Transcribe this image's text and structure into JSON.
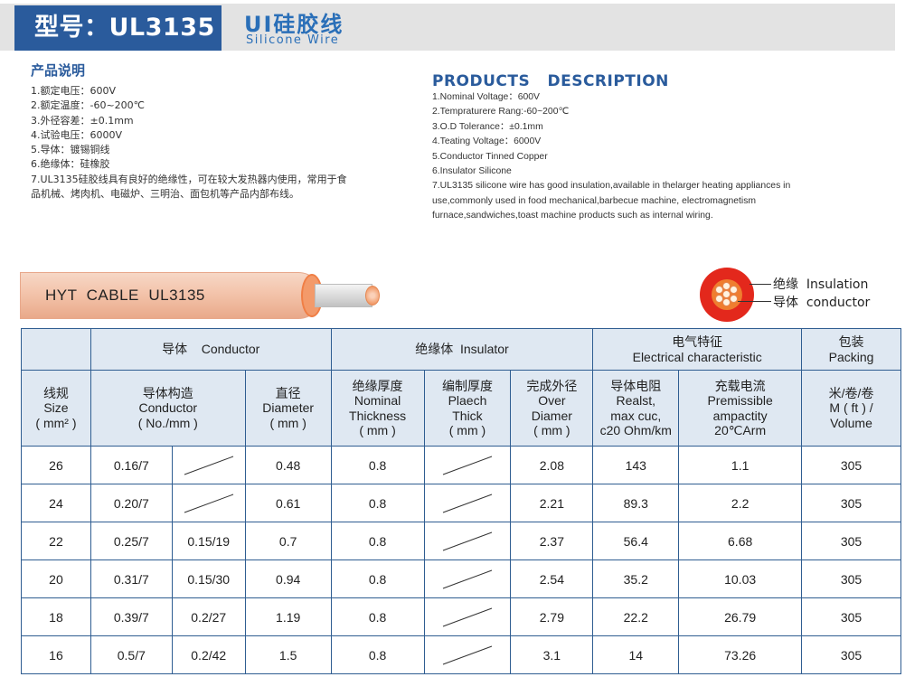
{
  "header": {
    "model_label": "型号：UL3135",
    "title_cn": "UI硅胶线",
    "title_en": "Silicone Wire"
  },
  "desc_cn": {
    "heading": "产品说明",
    "items": [
      "1.额定电压：600V",
      "2.额定温度：-60~200℃",
      "3.外径容差：±0.1mm",
      "4.试验电压：6000V",
      "5.导体：镀锡铜线",
      "6.绝缘体：硅橡胶",
      "7.UL3135硅胶线具有良好的绝缘性，可在较大发热器内使用，常用于食品机械、烤肉机、电磁炉、三明治、面包机等产品内部布线。"
    ]
  },
  "desc_en": {
    "heading": "PRODUCTS   DESCRIPTION",
    "items": [
      "1.Nominal Voltage：600V",
      "2.Tempraturere Rang:-60~200℃",
      "3.O.D Tolerance：±0.1mm",
      "4.Teating Voltage：6000V",
      "5.Conductor  Tinned Copper",
      "6.Insulator Silicone",
      "7.UL3135 silicone wire has good insulation,available in thelarger heating appliances in use,commonly used in food mechanical,barbecue machine, electromagnetism furnace,sandwiches,toast machine products such as internal wiring."
    ]
  },
  "cable": {
    "label": "HYT  CABLE  UL3135"
  },
  "cross_section": {
    "insulation_label": "绝缘  Insulation",
    "conductor_label": "导体  conductor",
    "colors": {
      "insulation": "#e3281c",
      "conductor": "#ef7e2f"
    }
  },
  "table": {
    "group_headers": {
      "conductor": "导体    Conductor",
      "insulator": "绝缘体  Insulator",
      "electrical_cn": "电气特征",
      "electrical_en": "Electrical characteristic",
      "packing_cn": "包装",
      "packing_en": "Packing"
    },
    "columns": {
      "size": [
        "线规",
        "Size",
        "( mm² )"
      ],
      "construction": [
        "导体构造",
        "Conductor",
        "( No./mm )"
      ],
      "diameter": [
        "直径",
        "Diameter",
        "( mm )"
      ],
      "thickness": [
        "绝缘厚度",
        "Nominal",
        "Thickness",
        "( mm )"
      ],
      "plaech": [
        "编制厚度",
        "Plaech",
        "Thick",
        "( mm )"
      ],
      "over": [
        "完成外径",
        "Over",
        "Diamer",
        "( mm )"
      ],
      "resistance": [
        "导体电阻",
        "Realst,",
        "max cuc,",
        "c20 Ohm/km"
      ],
      "ampacity": [
        "充载电流",
        "Premissible",
        "ampactity",
        "20℃Arm"
      ],
      "volume": [
        "米/卷/卷",
        "M ( ft ) /",
        "Volume"
      ]
    },
    "rows": [
      {
        "size": "26",
        "c1": "0.16/7",
        "c2": "",
        "dia": "0.48",
        "thick": "0.8",
        "plaech": "",
        "over": "2.08",
        "res": "143",
        "amp": "1.1",
        "vol": "305"
      },
      {
        "size": "24",
        "c1": "0.20/7",
        "c2": "",
        "dia": "0.61",
        "thick": "0.8",
        "plaech": "",
        "over": "2.21",
        "res": "89.3",
        "amp": "2.2",
        "vol": "305"
      },
      {
        "size": "22",
        "c1": "0.25/7",
        "c2": "0.15/19",
        "dia": "0.7",
        "thick": "0.8",
        "plaech": "",
        "over": "2.37",
        "res": "56.4",
        "amp": "6.68",
        "vol": "305"
      },
      {
        "size": "20",
        "c1": "0.31/7",
        "c2": "0.15/30",
        "dia": "0.94",
        "thick": "0.8",
        "plaech": "",
        "over": "2.54",
        "res": "35.2",
        "amp": "10.03",
        "vol": "305"
      },
      {
        "size": "18",
        "c1": "0.39/7",
        "c2": "0.2/27",
        "dia": "1.19",
        "thick": "0.8",
        "plaech": "",
        "over": "2.79",
        "res": "22.2",
        "amp": "26.79",
        "vol": "305"
      },
      {
        "size": "16",
        "c1": "0.5/7",
        "c2": "0.2/42",
        "dia": "1.5",
        "thick": "0.8",
        "plaech": "",
        "over": "3.1",
        "res": "14",
        "amp": "73.26",
        "vol": "305"
      }
    ]
  }
}
